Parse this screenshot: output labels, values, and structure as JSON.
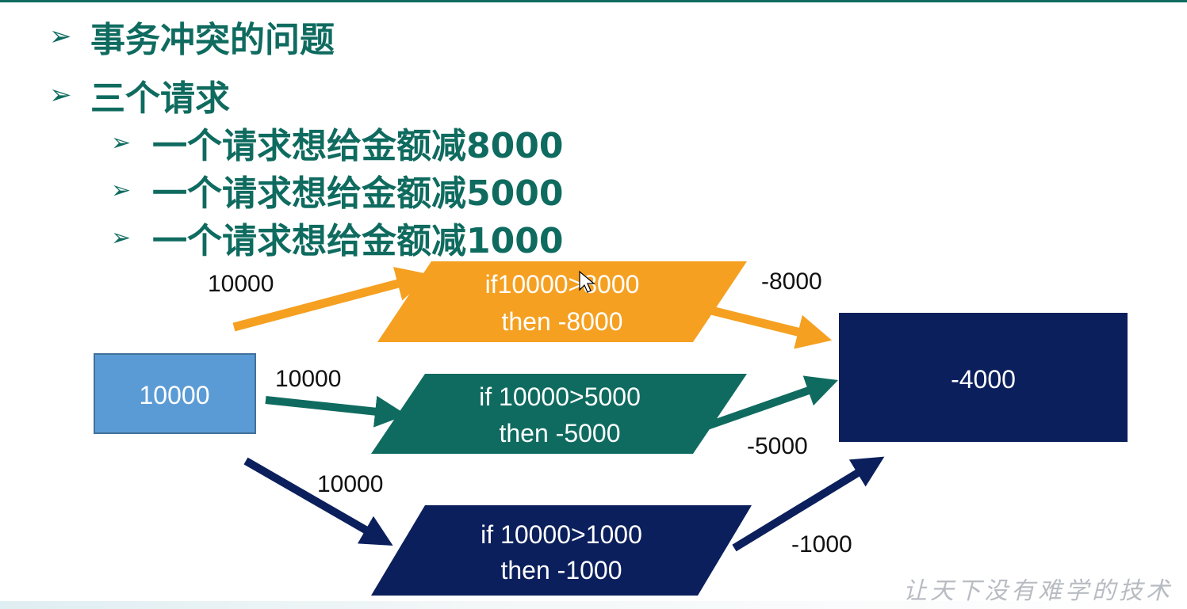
{
  "slide": {
    "bullets": [
      {
        "level": 1,
        "text": "事务冲突的问题"
      },
      {
        "level": 1,
        "text": "三个请求"
      },
      {
        "level": 2,
        "text": "一个请求想给金额减8000"
      },
      {
        "level": 2,
        "text": "一个请求想给金额减5000"
      },
      {
        "level": 2,
        "text": "一个请求想给金额减1000"
      }
    ],
    "bullet_symbol": "➢",
    "watermark": "让天下没有难学的技术"
  },
  "diagram": {
    "source": {
      "value": "10000",
      "color": "#5b9bd5"
    },
    "result": {
      "value": "-4000",
      "color": "#0b1f5c"
    },
    "branches": [
      {
        "in_label": "10000",
        "line1": "if10000>8000",
        "line2": "then  -8000",
        "out_label": "-8000",
        "color": "#f5a021"
      },
      {
        "in_label": "10000",
        "line1": "if 10000>5000",
        "line2": "then -5000",
        "out_label": "-5000",
        "color": "#0f6b5f"
      },
      {
        "in_label": "10000",
        "line1": "if 10000>1000",
        "line2": "then -1000",
        "out_label": "-1000",
        "color": "#0b1f5c"
      }
    ]
  },
  "colors": {
    "heading": "#0f6b5f",
    "text": "#111111"
  }
}
